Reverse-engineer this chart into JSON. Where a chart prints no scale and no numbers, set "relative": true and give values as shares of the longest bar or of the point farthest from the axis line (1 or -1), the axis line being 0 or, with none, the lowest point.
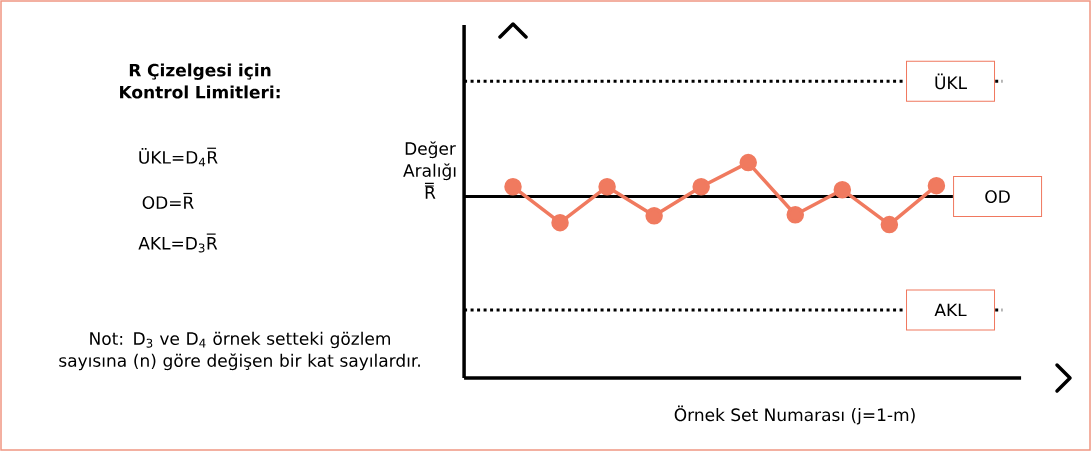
{
  "chart_data": {
    "type": "line",
    "relative": true,
    "marker": "circle",
    "line_style": "solid",
    "title": "R Çizelgesi için Kontrol Limitleri:",
    "xlabel": "Örnek Set Numarası (j=1-m)",
    "ylabel": "Değer Aralığı R̿",
    "categories": [
      null,
      null,
      null,
      null,
      null,
      null,
      null,
      null,
      null,
      null
    ],
    "series": [
      {
        "color": "#f07a5f",
        "values": [
          0.888,
          0.721,
          0.888,
          0.753,
          0.888,
          1,
          0.758,
          0.874,
          0.712,
          0.893
        ]
      }
    ],
    "ref_lines": [
      {
        "axis": "y",
        "value": 1.377,
        "label": "ÜKL",
        "color": "#000000",
        "line_style": "dotted"
      },
      {
        "axis": "y",
        "value": 0.842,
        "label": "OD",
        "color": "#000000",
        "line_style": "solid"
      },
      {
        "axis": "y",
        "value": 0.316,
        "label": "AKL",
        "color": "#000000",
        "line_style": "dotted"
      }
    ],
    "annotations": [
      "ÜKL=D$_{4}$R̅",
      "OD=R̅",
      "AKL=D$_{3}$R̅",
      "Not: D$_{3}$ ve D$_{4}$ örnek setteki gözlem sayısına (n) göre değişen bir kat sayılardır."
    ]
  }
}
